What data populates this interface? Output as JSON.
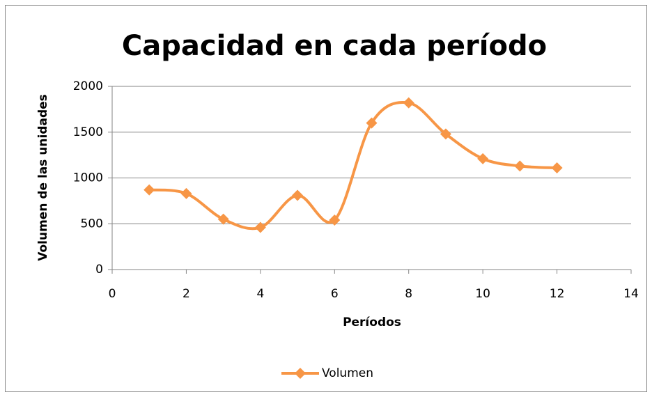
{
  "chart_data": {
    "type": "line",
    "title": "Capacidad en cada período",
    "x_label": "Períodos",
    "y_label": "Volumen de las unidades",
    "x": [
      1,
      2,
      3,
      4,
      5,
      6,
      7,
      8,
      9,
      10,
      11,
      12
    ],
    "series": [
      {
        "name": "Volumen",
        "color": "#f79646",
        "values": [
          870,
          830,
          550,
          460,
          810,
          540,
          1600,
          1820,
          1480,
          1210,
          1130,
          1110
        ]
      }
    ],
    "xlim": [
      0,
      14
    ],
    "xticks": [
      0,
      2,
      4,
      6,
      8,
      10,
      12,
      14
    ],
    "ylim": [
      0,
      2000
    ],
    "yticks": [
      0,
      500,
      1000,
      1500,
      2000
    ],
    "grid": true,
    "smooth": true,
    "legend": "bottom"
  }
}
